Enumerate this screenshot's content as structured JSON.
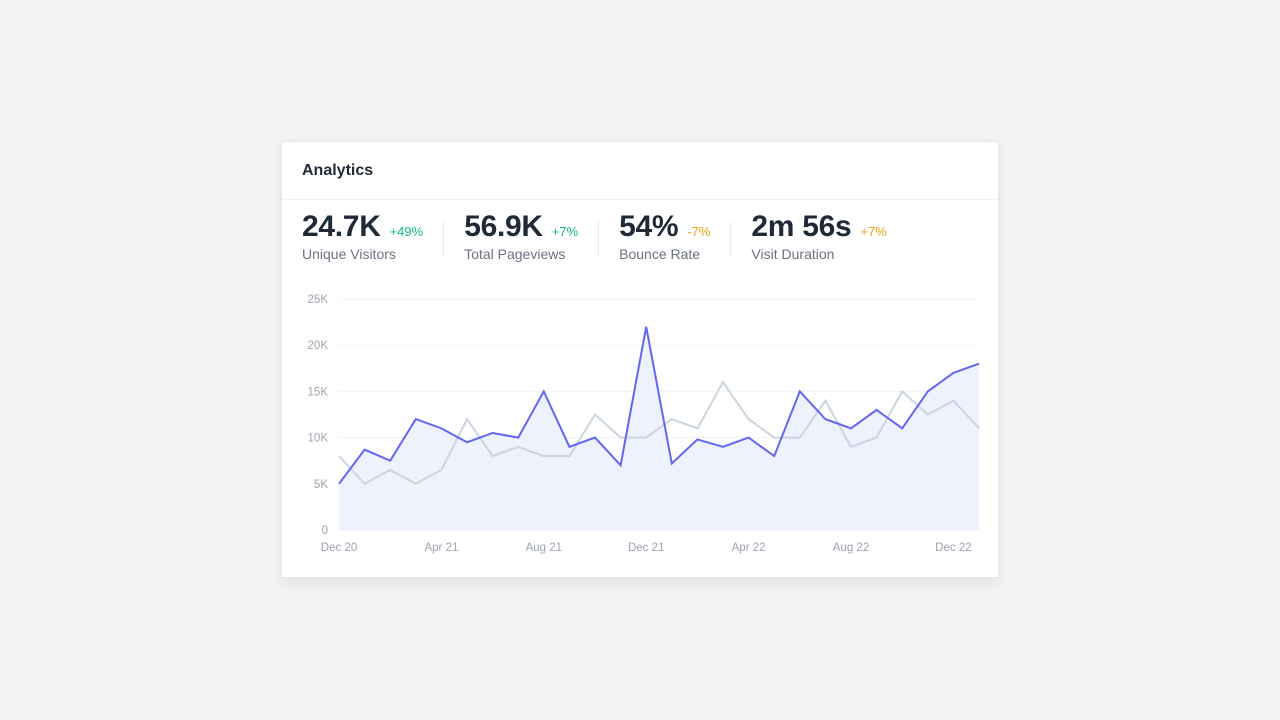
{
  "card": {
    "title": "Analytics"
  },
  "stats": [
    {
      "value": "24.7K",
      "change": "+49%",
      "label": "Unique Visitors",
      "trend": "up"
    },
    {
      "value": "56.9K",
      "change": "+7%",
      "label": "Total Pageviews",
      "trend": "up"
    },
    {
      "value": "54%",
      "change": "-7%",
      "label": "Bounce Rate",
      "trend": "warn"
    },
    {
      "value": "2m 56s",
      "change": "+7%",
      "label": "Visit Duration",
      "trend": "warn"
    }
  ],
  "colors": {
    "up": "#10b981",
    "warn": "#f59e0b",
    "primary": "#6366f1",
    "secondary": "#cbd5e1",
    "fill": "#eef2fd"
  },
  "chart_data": {
    "type": "line",
    "x_tick_labels": [
      "Dec 20",
      "Apr 21",
      "Aug 21",
      "Dec 21",
      "Apr 22",
      "Aug 22",
      "Dec 22"
    ],
    "y_tick_labels": [
      "0",
      "5K",
      "10K",
      "15K",
      "20K",
      "25K"
    ],
    "ylim": [
      0,
      25000
    ],
    "grid": true,
    "series": [
      {
        "values": [
          5000,
          8700,
          7500,
          12000,
          11000,
          9500,
          10500,
          10000,
          15000,
          9000,
          10000,
          7000,
          22000,
          7200,
          9800,
          9000,
          10000,
          8000,
          15000,
          12000,
          11000,
          13000,
          11000,
          15000,
          17000,
          18000
        ]
      },
      {
        "values": [
          8000,
          5000,
          6500,
          5000,
          6500,
          12000,
          8000,
          9000,
          8000,
          8000,
          12500,
          10000,
          10000,
          12000,
          11000,
          16000,
          12000,
          10000,
          10000,
          14000,
          9000,
          10000,
          15000,
          12500,
          14000,
          11000
        ]
      }
    ]
  }
}
